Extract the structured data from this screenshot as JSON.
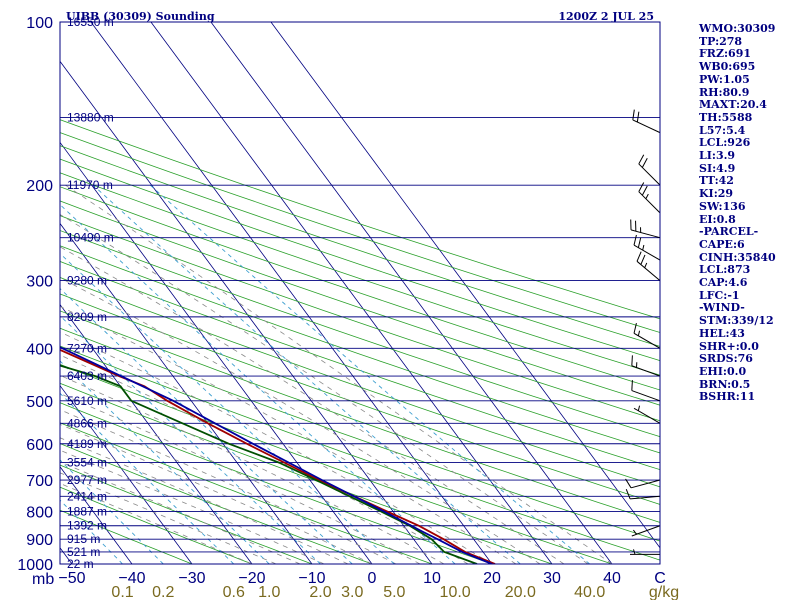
{
  "header": {
    "station": "UIBB (30309) Sounding",
    "time": "1200Z  2 JUL 25"
  },
  "indices": [
    "WMO:30309",
    "TP:278",
    "FRZ:691",
    "WB0:695",
    "PW:1.05",
    "RH:80.9",
    "MAXT:20.4",
    "TH:5588",
    "L57:5.4",
    "LCL:926",
    "LI:3.9",
    "SI:4.9",
    "TT:42",
    "KI:29",
    "SW:136",
    "EI:0.8",
    "-PARCEL-",
    "CAPE:6",
    "CINH:35840",
    "LCL:873",
    "CAP:4.6",
    "LFC:-1",
    "-WIND-",
    "STM:339/12",
    "HEL:43",
    "SHR+:0.0",
    "SRDS:76",
    "EHI:0.0",
    "BRN:0.5",
    "BSHR:11"
  ],
  "colors": {
    "frame": "#000080",
    "isobar": "#000080",
    "isotherm": "#000080",
    "dry_adiabat": "#2aa02a",
    "moist_adiabat": "#8a8a8a",
    "mixing_ratio": "#3fa0d0",
    "temperature": "#a00000",
    "dewpoint": "#005000",
    "parcel": "#0000a0",
    "wind_barb": "#000000",
    "mixing_label": "#7a6a20"
  },
  "chart_data": {
    "type": "skew-t log-p",
    "y_axis": {
      "quantity": "pressure",
      "unit": "mb",
      "scale": "log",
      "range": [
        1000,
        100
      ]
    },
    "x_axis": {
      "quantity": "temperature",
      "unit": "C",
      "range": [
        -50,
        50
      ]
    },
    "pressure_labels": [
      "100",
      "200",
      "300",
      "400",
      "500",
      "600",
      "700",
      "800",
      "900",
      "1000"
    ],
    "pressure_unit_label": "mb",
    "temperature_labels": [
      "−50",
      "−40",
      "−30",
      "−20",
      "−10",
      "0",
      "10",
      "20",
      "30",
      "40",
      "C"
    ],
    "mixing_ratio_labels": [
      "0.1",
      "0.2",
      "0.6",
      "1.0",
      "2.0",
      "3.0",
      "5.0",
      "10.0",
      "20.0",
      "40.0",
      "g/kg"
    ],
    "heights": [
      {
        "p": 100,
        "label": "16550 m"
      },
      {
        "p": 150,
        "label": "13880 m"
      },
      {
        "p": 200,
        "label": "11970 m"
      },
      {
        "p": 250,
        "label": "10490 m"
      },
      {
        "p": 300,
        "label": "9280 m"
      },
      {
        "p": 350,
        "label": "8209 m"
      },
      {
        "p": 400,
        "label": "7270 m"
      },
      {
        "p": 450,
        "label": "6403 m"
      },
      {
        "p": 500,
        "label": "5610 m"
      },
      {
        "p": 550,
        "label": "4866 m"
      },
      {
        "p": 600,
        "label": "4189 m"
      },
      {
        "p": 650,
        "label": "3554 m"
      },
      {
        "p": 700,
        "label": "2977 m"
      },
      {
        "p": 750,
        "label": "2414 m"
      },
      {
        "p": 800,
        "label": "1887 m"
      },
      {
        "p": 850,
        "label": "1392 m"
      },
      {
        "p": 900,
        "label": "915 m"
      },
      {
        "p": 950,
        "label": "521 m"
      },
      {
        "p": 1000,
        "label": "22 m"
      }
    ],
    "series": [
      {
        "name": "temperature",
        "points": [
          {
            "p": 1000,
            "t": 20.5
          },
          {
            "p": 950,
            "t": 17.0
          },
          {
            "p": 900,
            "t": 15.0
          },
          {
            "p": 850,
            "t": 12.5
          },
          {
            "p": 800,
            "t": 9.0
          },
          {
            "p": 700,
            "t": 1.5
          },
          {
            "p": 600,
            "t": -6.0
          },
          {
            "p": 550,
            "t": -10.0
          },
          {
            "p": 500,
            "t": -14.0
          },
          {
            "p": 470,
            "t": -16.0
          },
          {
            "p": 450,
            "t": -19.0
          },
          {
            "p": 400,
            "t": -26.0
          },
          {
            "p": 350,
            "t": -34.0
          },
          {
            "p": 300,
            "t": -43.0
          },
          {
            "p": 280,
            "t": -47.0
          },
          {
            "p": 250,
            "t": -45.0
          },
          {
            "p": 200,
            "t": -38.0
          },
          {
            "p": 180,
            "t": -36.0
          },
          {
            "p": 150,
            "t": -37.0
          },
          {
            "p": 100,
            "t": -34.0
          }
        ]
      },
      {
        "name": "dewpoint",
        "points": [
          {
            "p": 1000,
            "t": 17.5
          },
          {
            "p": 950,
            "t": 13.5
          },
          {
            "p": 900,
            "t": 13.0
          },
          {
            "p": 850,
            "t": 11.0
          },
          {
            "p": 800,
            "t": 8.0
          },
          {
            "p": 700,
            "t": 1.0
          },
          {
            "p": 650,
            "t": -3.0
          },
          {
            "p": 600,
            "t": -9.0
          },
          {
            "p": 500,
            "t": -20.0
          },
          {
            "p": 470,
            "t": -20.0
          },
          {
            "p": 450,
            "t": -23.0
          },
          {
            "p": 400,
            "t": -35.0
          },
          {
            "p": 350,
            "t": -43.0
          },
          {
            "p": 300,
            "t": -52.0
          },
          {
            "p": 280,
            "t": -56.0
          },
          {
            "p": 250,
            "t": -54.0
          },
          {
            "p": 200,
            "t": -50.0
          },
          {
            "p": 150,
            "t": -52.0
          },
          {
            "p": 100,
            "t": -54.0
          }
        ]
      },
      {
        "name": "parcel",
        "points": [
          {
            "p": 1000,
            "t": 20.0
          },
          {
            "p": 950,
            "t": 16.5
          },
          {
            "p": 900,
            "t": 14.0
          },
          {
            "p": 873,
            "t": 12.5
          },
          {
            "p": 800,
            "t": 8.5
          },
          {
            "p": 700,
            "t": 2.0
          },
          {
            "p": 600,
            "t": -5.0
          },
          {
            "p": 500,
            "t": -13.0
          },
          {
            "p": 400,
            "t": -25.0
          },
          {
            "p": 300,
            "t": -42.0
          },
          {
            "p": 250,
            "t": -54.0
          },
          {
            "p": 200,
            "t": -65.0
          },
          {
            "p": 150,
            "t": -79.0
          },
          {
            "p": 100,
            "t": -99.0
          }
        ]
      }
    ],
    "winds": [
      {
        "p": 960,
        "dir": 270,
        "kt": 5
      },
      {
        "p": 850,
        "dir": 250,
        "kt": 5
      },
      {
        "p": 750,
        "dir": 265,
        "kt": 10
      },
      {
        "p": 700,
        "dir": 255,
        "kt": 10
      },
      {
        "p": 550,
        "dir": 300,
        "kt": 5
      },
      {
        "p": 500,
        "dir": 290,
        "kt": 10
      },
      {
        "p": 450,
        "dir": 290,
        "kt": 15
      },
      {
        "p": 400,
        "dir": 300,
        "kt": 15
      },
      {
        "p": 300,
        "dir": 310,
        "kt": 25
      },
      {
        "p": 275,
        "dir": 300,
        "kt": 25
      },
      {
        "p": 250,
        "dir": 285,
        "kt": 25
      },
      {
        "p": 225,
        "dir": 315,
        "kt": 25
      },
      {
        "p": 200,
        "dir": 315,
        "kt": 20
      },
      {
        "p": 160,
        "dir": 295,
        "kt": 20
      }
    ]
  }
}
